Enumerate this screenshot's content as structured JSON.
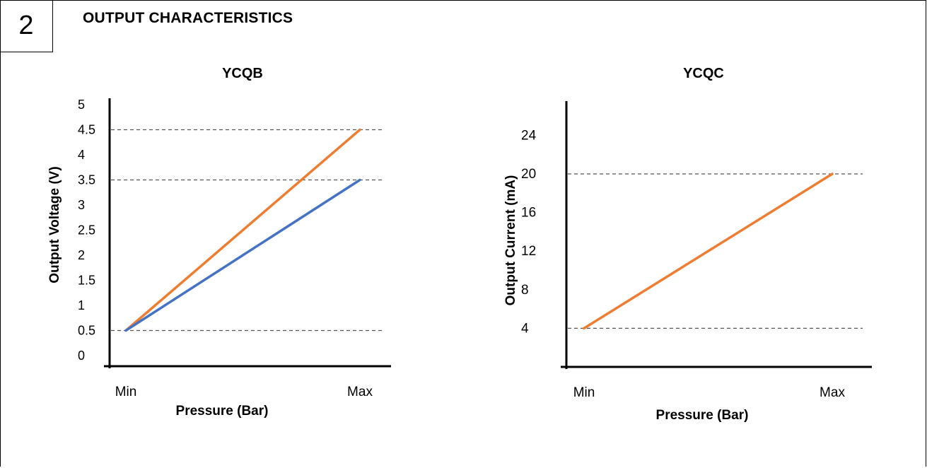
{
  "section": {
    "number": "2",
    "title": "OUTPUT CHARACTERISTICS"
  },
  "chart_data": [
    {
      "type": "line",
      "title": "YCQB",
      "xlabel": "Pressure (Bar)",
      "ylabel": "Output Voltage (V)",
      "x_ticks": [
        "Min",
        "Max"
      ],
      "y_ticks": [
        "0",
        "0.5",
        "1",
        "1.5",
        "2",
        "2.5",
        "3",
        "3.5",
        "4",
        "4.5",
        "5"
      ],
      "ylim": [
        0,
        5
      ],
      "reference_lines": [
        0.5,
        3.5,
        4.5
      ],
      "series": [
        {
          "color": "#ED7D31",
          "x": [
            "Min",
            "Max"
          ],
          "values": [
            0.5,
            4.5
          ]
        },
        {
          "color": "#4472C4",
          "x": [
            "Min",
            "Max"
          ],
          "values": [
            0.5,
            3.5
          ]
        }
      ]
    },
    {
      "type": "line",
      "title": "YCQC",
      "xlabel": "Pressure (Bar)",
      "ylabel": "Output Current (mA)",
      "x_ticks": [
        "Min",
        "Max"
      ],
      "y_ticks": [
        "4",
        "8",
        "12",
        "16",
        "20",
        "24"
      ],
      "ylim": [
        0,
        28
      ],
      "reference_lines": [
        4,
        20
      ],
      "series": [
        {
          "color": "#ED7D31",
          "x": [
            "Min",
            "Max"
          ],
          "values": [
            4,
            20
          ]
        }
      ]
    }
  ]
}
